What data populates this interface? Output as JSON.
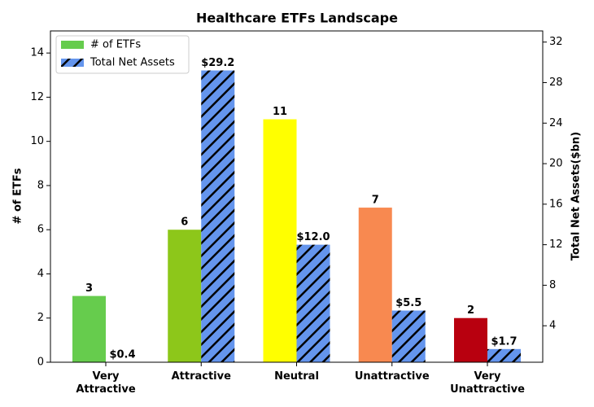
{
  "chart_data": {
    "type": "bar",
    "title": "Healthcare ETFs Landscape",
    "y_label": "# of ETFs",
    "y2_label": "Total Net Assets($bn)",
    "categories": [
      "Very\nAttractive",
      "Attractive",
      "Neutral",
      "Unattractive",
      "Very\nUnattractive"
    ],
    "series": [
      {
        "name": "# of ETFs",
        "color": "#66cc4d",
        "colors": [
          "#66cc4d",
          "#8dc71a",
          "#ffff00",
          "#f88950",
          "#b8000f"
        ],
        "values": [
          3,
          6,
          11,
          7,
          2
        ]
      },
      {
        "name": "Total Net Assets",
        "color": "#6495ed",
        "hatch": true,
        "axis": "y2",
        "values": [
          0.4,
          29.2,
          12.0,
          5.5,
          1.7
        ],
        "value_labels": [
          "$0.4",
          "$29.2",
          "$12.0",
          "$5.5",
          "$1.7"
        ]
      }
    ],
    "ylim": [
      0,
      15
    ],
    "yticks": [
      0,
      2,
      4,
      6,
      8,
      10,
      12,
      14
    ],
    "y2lim": [
      0.4,
      33.1
    ],
    "y2ticks": [
      4,
      8,
      12,
      16,
      20,
      24,
      28,
      32
    ],
    "legend": "upper-left"
  }
}
